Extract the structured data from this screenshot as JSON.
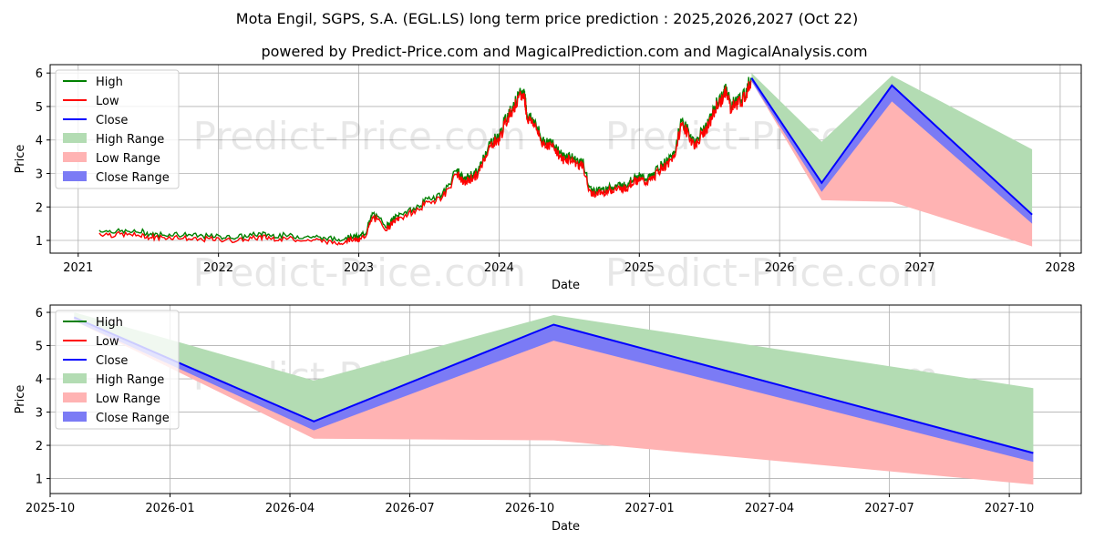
{
  "title": "Mota Engil, SGPS, S.A. (EGL.LS) long term price prediction : 2025,2026,2027 (Oct 22)",
  "subtitle": "powered by Predict-Price.com and MagicalPrediction.com and MagicalAnalysis.com",
  "watermark": "Predict-Price.com",
  "colors": {
    "high": "#008000",
    "low": "#ff0000",
    "close": "#0000ff",
    "high_range": "#b3dcb3",
    "low_range": "#ffb3b3",
    "close_range": "#7b7bf5",
    "grid": "#b0b0b0"
  },
  "legend": [
    "High",
    "Low",
    "Close",
    "High Range",
    "Low Range",
    "Close Range"
  ],
  "chart_data": [
    {
      "type": "line",
      "xlabel": "Date",
      "ylabel": "Price",
      "xlim": [
        2020.8,
        2028.15
      ],
      "ylim": [
        0.62,
        6.25
      ],
      "xticks": [
        2021,
        2022,
        2023,
        2024,
        2025,
        2026,
        2027,
        2028
      ],
      "xtick_labels": [
        "2021",
        "2022",
        "2023",
        "2024",
        "2025",
        "2026",
        "2027",
        "2028"
      ],
      "yticks": [
        1,
        2,
        3,
        4,
        5,
        6
      ],
      "ytick_labels": [
        "1",
        "2",
        "3",
        "4",
        "5",
        "6"
      ],
      "legend_position": "upper-left",
      "history": {
        "x": [
          2021.15,
          2021.3,
          2021.45,
          2021.55,
          2021.7,
          2021.85,
          2022.0,
          2022.15,
          2022.3,
          2022.4,
          2022.55,
          2022.7,
          2022.85,
          2022.95,
          2023.0,
          2023.05,
          2023.1,
          2023.2,
          2023.25,
          2023.3,
          2023.4,
          2023.5,
          2023.6,
          2023.7,
          2023.75,
          2023.8,
          2023.85,
          2023.9,
          2023.95,
          2024.0,
          2024.05,
          2024.1,
          2024.15,
          2024.18,
          2024.2,
          2024.25,
          2024.3,
          2024.35,
          2024.4,
          2024.45,
          2024.5,
          2024.55,
          2024.6,
          2024.65,
          2024.7,
          2024.75,
          2024.8,
          2024.85,
          2024.9,
          2024.95,
          2025.0,
          2025.05,
          2025.1,
          2025.15,
          2025.2,
          2025.25,
          2025.3,
          2025.35,
          2025.4,
          2025.45,
          2025.5,
          2025.55,
          2025.6,
          2025.62,
          2025.65,
          2025.7,
          2025.75,
          2025.8
        ],
        "close": [
          1.25,
          1.22,
          1.2,
          1.12,
          1.15,
          1.08,
          1.07,
          1.05,
          1.15,
          1.1,
          1.08,
          1.05,
          0.97,
          1.08,
          1.05,
          1.2,
          1.75,
          1.4,
          1.6,
          1.75,
          1.9,
          2.2,
          2.35,
          3.05,
          2.75,
          2.9,
          3.0,
          3.55,
          3.95,
          4.05,
          4.6,
          5.0,
          5.3,
          5.4,
          4.7,
          4.55,
          4.0,
          3.9,
          3.8,
          3.45,
          3.5,
          3.35,
          3.25,
          2.45,
          2.45,
          2.5,
          2.55,
          2.6,
          2.6,
          2.8,
          2.85,
          2.8,
          2.9,
          3.2,
          3.3,
          3.55,
          4.55,
          4.2,
          3.85,
          4.25,
          4.5,
          5.05,
          5.3,
          5.55,
          5.0,
          5.15,
          5.3,
          5.85
        ],
        "high_offset": 0.1,
        "low_offset": 0.1
      },
      "forecast": {
        "x": [
          2025.8,
          2026.3,
          2026.8,
          2027.8
        ],
        "high": [
          6.0,
          3.95,
          5.92,
          3.72
        ],
        "low": [
          5.75,
          2.2,
          2.15,
          0.82
        ],
        "close": [
          5.85,
          2.72,
          5.63,
          1.77
        ],
        "high_range_upper": [
          6.0,
          3.95,
          5.92,
          3.72
        ],
        "high_range_lower": [
          5.85,
          2.72,
          5.63,
          1.77
        ],
        "low_range_upper": [
          5.75,
          2.6,
          5.2,
          1.55
        ],
        "low_range_lower": [
          5.75,
          2.2,
          2.15,
          0.82
        ],
        "close_range_upper": [
          5.85,
          2.75,
          5.63,
          1.77
        ],
        "close_range_lower": [
          5.75,
          2.45,
          5.15,
          1.5
        ]
      }
    },
    {
      "type": "line",
      "xlabel": "Date",
      "ylabel": "Price",
      "xlim": [
        2025.75,
        2027.9
      ],
      "ylim": [
        0.55,
        6.22
      ],
      "xticks": [
        2025.75,
        2026.0,
        2026.25,
        2026.5,
        2026.75,
        2027.0,
        2027.25,
        2027.5,
        2027.75
      ],
      "xtick_labels": [
        "2025-10",
        "2026-01",
        "2026-04",
        "2026-07",
        "2026-10",
        "2027-01",
        "2027-04",
        "2027-07",
        "2027-10"
      ],
      "yticks": [
        1,
        2,
        3,
        4,
        5,
        6
      ],
      "ytick_labels": [
        "1",
        "2",
        "3",
        "4",
        "5",
        "6"
      ],
      "legend_position": "upper-left",
      "forecast": {
        "x": [
          2025.8,
          2026.3,
          2026.8,
          2027.8
        ],
        "high": [
          6.0,
          3.95,
          5.92,
          3.72
        ],
        "low": [
          5.75,
          2.2,
          2.15,
          0.82
        ],
        "close": [
          5.85,
          2.72,
          5.63,
          1.77
        ],
        "high_range_upper": [
          6.0,
          3.95,
          5.92,
          3.72
        ],
        "high_range_lower": [
          5.85,
          2.72,
          5.63,
          1.77
        ],
        "low_range_upper": [
          5.75,
          2.6,
          5.2,
          1.55
        ],
        "low_range_lower": [
          5.75,
          2.2,
          2.15,
          0.82
        ],
        "close_range_upper": [
          5.85,
          2.75,
          5.63,
          1.77
        ],
        "close_range_lower": [
          5.75,
          2.45,
          5.15,
          1.5
        ]
      }
    }
  ]
}
